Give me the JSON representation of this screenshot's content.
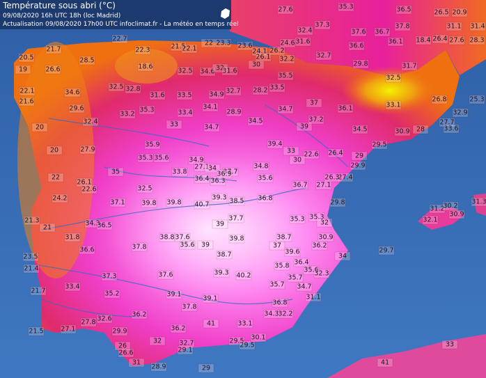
{
  "header": {
    "title": "Température sous abri (°C)",
    "line1": "09/08/2020  16h UTC  18h (loc Madrid)",
    "line2": "Actualisation 09/08/2020 17h00 UTC   infoclimat.fr - La météo en temps réel"
  },
  "stations": [
    27.6,
    35.3,
    36.5,
    26.5,
    20.9,
    32.4,
    37.3,
    37.6,
    36.7,
    37.8,
    31.1,
    31.4,
    22.7,
    21.5,
    22,
    23.3,
    23.6,
    31.6,
    18.4,
    32.7,
    36.6,
    36.1,
    26.4,
    27.6,
    28.3,
    20.5,
    21.7,
    28.5,
    22.3,
    24.1,
    26.2,
    24.6,
    22.1,
    19,
    26.6,
    18.6,
    32.5,
    34.6,
    32,
    31.6,
    30,
    26.1,
    22.1,
    34.6,
    32.5,
    32.8,
    31.6,
    33.5,
    34.9,
    32.7,
    28.2,
    33.5,
    35.5,
    32.2,
    31.7,
    32.5,
    29.8,
    21.6,
    29.6,
    33.2,
    35.3,
    33.4,
    34.1,
    28.9,
    34.7,
    37,
    36.1,
    33.1,
    26.8,
    25.3,
    32.4,
    33,
    34.7,
    34.5,
    39,
    37.2,
    34.5,
    30.9,
    28,
    32.9,
    27.7,
    33.6,
    27.9,
    35.9,
    35.3,
    35.6,
    34.9,
    39.4,
    33,
    22.6,
    26.4,
    29,
    29.5,
    20,
    20,
    22,
    26.1,
    22.6,
    35,
    33.8,
    27.1,
    34,
    37.7,
    30,
    29.9,
    27.4,
    34.8,
    24.2,
    32.5,
    36.4,
    36.3,
    36.9,
    35.6,
    36.7,
    27.1,
    26.3,
    36.8,
    29.8,
    37.1,
    39.8,
    39.8,
    40.7,
    39.3,
    38.5,
    35.3,
    21.3,
    21,
    34.3,
    36.5,
    39,
    37.7,
    35.3,
    32,
    31.2,
    30.2,
    31.3,
    32.1,
    30.9,
    31.8,
    38.8,
    37.6,
    35.6,
    39.8,
    38.7,
    30.9,
    23.5,
    36.6,
    37.8,
    39,
    38.7,
    37,
    36.2,
    34,
    29.7,
    21.4,
    35.8,
    36.4,
    35.6,
    32.3,
    37.3,
    37.6,
    39.3,
    40.2,
    35.7,
    39.6,
    21.7,
    33.4,
    35.2,
    39.1,
    39.1,
    35.7,
    34.7,
    31.1,
    37.8,
    36.8,
    34.3,
    32.2,
    36.2,
    32.6,
    21.5,
    27.8,
    27.1,
    29.9,
    36.2,
    41,
    33.1,
    26,
    32,
    32.7,
    29.1,
    29.5,
    30.1,
    29.5,
    33,
    26.6,
    31,
    28.9,
    29,
    41
  ]
}
